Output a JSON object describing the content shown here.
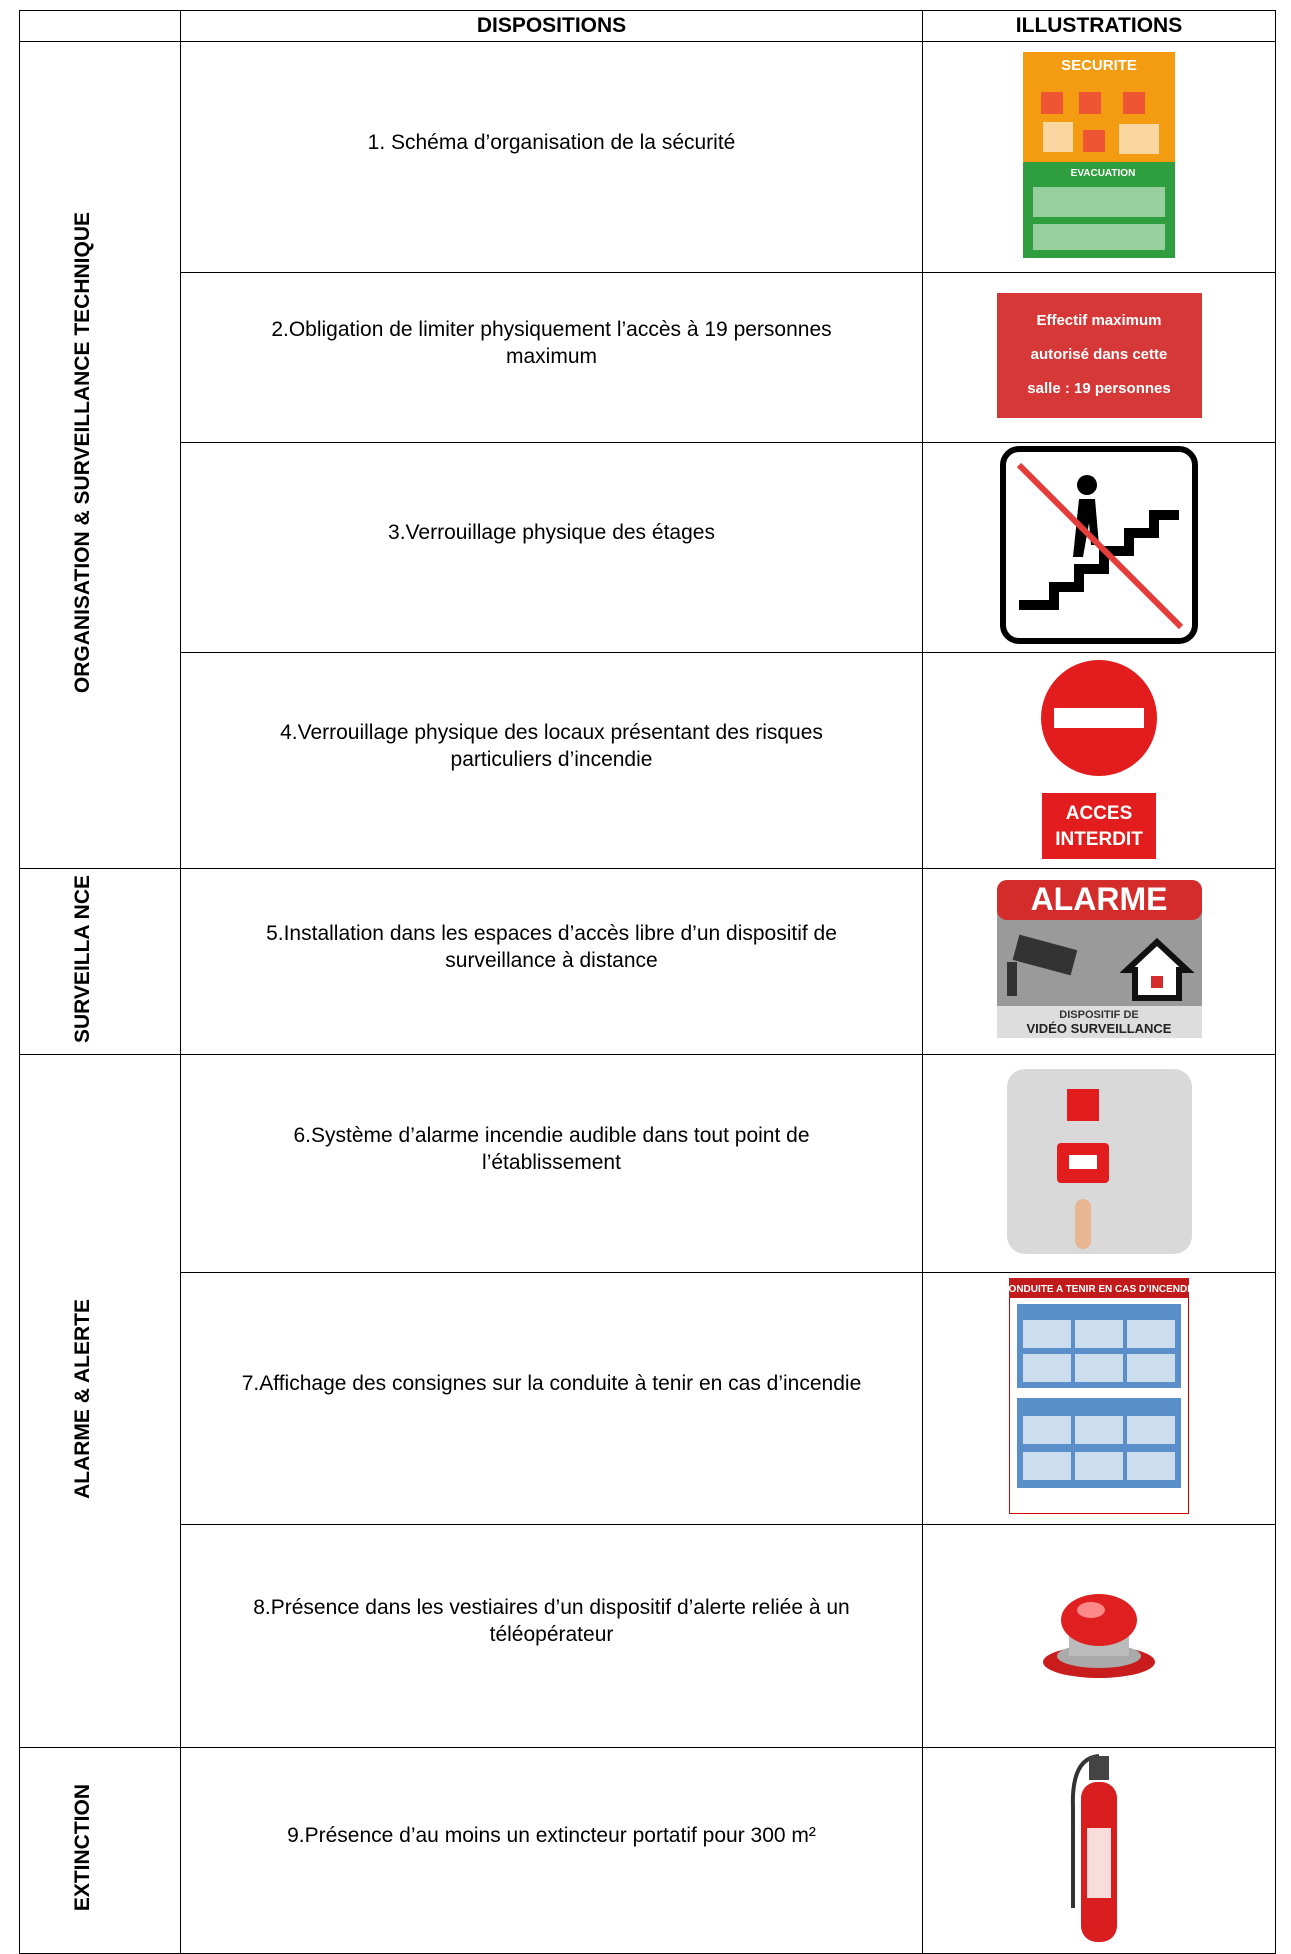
{
  "header": [
    "DISPOSITIONS",
    "ILLUSTRATIONS"
  ],
  "groups": [
    {
      "label": "ORGANISATION & SURVEILLANCE TECHNIQUE",
      "rows": [
        {
          "text": "1. Schéma d’organisation de la sécurité",
          "sign": [
            "SECURITE",
            "EVACUATION"
          ]
        },
        {
          "text": "2.Obligation de limiter physiquement l’accès à 19 personnes maximum",
          "sign": [
            "Effectif maximum",
            "autorisé dans cette",
            "salle : 19 personnes"
          ]
        },
        {
          "text": "3.Verrouillage physique des étages"
        },
        {
          "text": "4.Verrouillage physique des locaux présentant des risques particuliers d’incendie",
          "sign": [
            "ACCES",
            "INTERDIT"
          ]
        }
      ]
    },
    {
      "label": "SURVEILLA NCE",
      "rows": [
        {
          "text": "5.Installation dans les espaces d’accès libre d’un dispositif de surveillance à distance",
          "sign": [
            "ALARME",
            "DISPOSITIF DE",
            "VIDÉO SURVEILLANCE"
          ]
        }
      ]
    },
    {
      "label": "ALARME & ALERTE",
      "rows": [
        {
          "text": "6.Système d’alarme incendie audible dans tout point de l’établissement"
        },
        {
          "text": "7.Affichage des consignes sur la conduite à tenir en cas d’incendie",
          "sign": [
            "CONDUITE A TENIR EN CAS D’INCENDIE"
          ]
        },
        {
          "text": "8.Présence dans les vestiaires d’un dispositif d’alerte reliée à un téléopérateur"
        }
      ]
    },
    {
      "label": "EXTINCTION",
      "rows": [
        {
          "text": "9.Présence d’au moins un extincteur portatif pour 300 m²"
        }
      ]
    }
  ]
}
